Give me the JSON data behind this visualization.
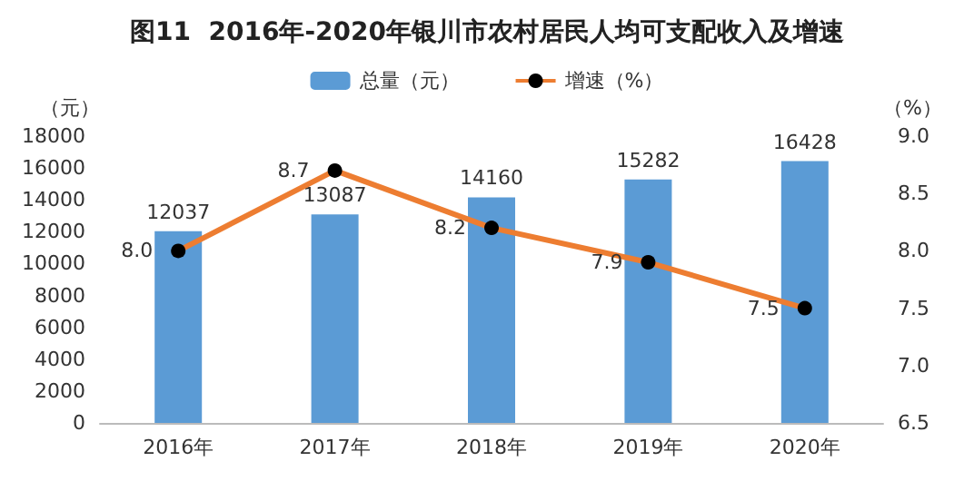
{
  "chart_data": {
    "type": "bar",
    "title": "图11  2016年-2020年银川市农村居民人均可支配收入及增速",
    "categories": [
      "2016年",
      "2017年",
      "2018年",
      "2019年",
      "2020年"
    ],
    "series": [
      {
        "name": "总量（元）",
        "color": "#5b9bd5",
        "values": [
          12037,
          13087,
          14160,
          15282,
          16428
        ],
        "value_labels": [
          "12037",
          "13087",
          "14160",
          "15282",
          "16428"
        ]
      },
      {
        "name": "增速（%）",
        "type": "line",
        "axis": "y2",
        "color": "#ed7d31",
        "values": [
          8.0,
          8.7,
          8.2,
          7.9,
          7.5
        ],
        "value_labels": [
          "8.0",
          "8.7",
          "8.2",
          "7.9",
          "7.5"
        ]
      }
    ],
    "ylabel": "（元）",
    "y2label": "（%）",
    "ylim": [
      0,
      18000
    ],
    "yticks": [
      0,
      2000,
      4000,
      6000,
      8000,
      10000,
      12000,
      14000,
      16000,
      18000
    ],
    "y2lim": [
      6.5,
      9.0
    ],
    "y2ticks": [
      6.5,
      {
        "value": 7.0,
        "label": "7.0"
      },
      7.5,
      {
        "value": 8.0,
        "label": "8.0"
      },
      8.5,
      {
        "value": 9.0,
        "label": "9.0"
      }
    ],
    "legend": "top",
    "marker": "circle",
    "grid": false
  }
}
